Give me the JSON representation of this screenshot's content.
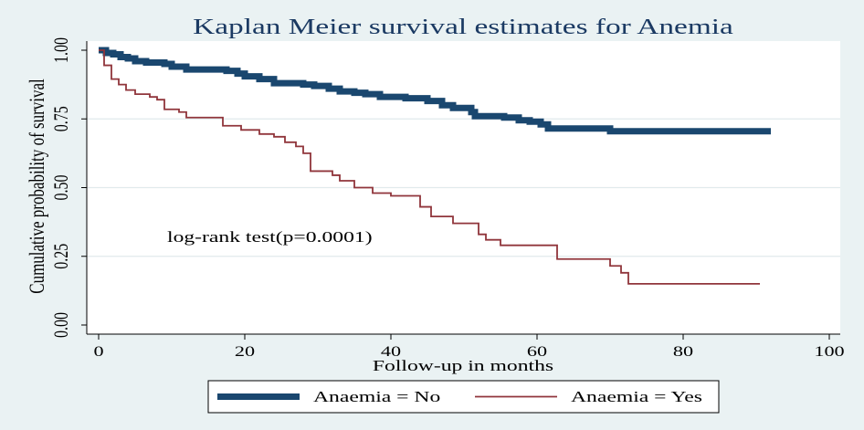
{
  "chart_data": {
    "type": "line",
    "title": "Kaplan Meier survival estimates for Anemia",
    "xlabel": "Follow-up in months",
    "ylabel": "Cumulative probability of survival",
    "xlim": [
      0,
      100
    ],
    "ylim": [
      0,
      1
    ],
    "xticks": [
      0,
      20,
      40,
      60,
      80,
      100
    ],
    "xtick_labels": [
      "0",
      "20",
      "40",
      "60",
      "80",
      "100"
    ],
    "yticks": [
      0,
      0.25,
      0.5,
      0.75,
      1
    ],
    "ytick_labels": [
      "0.00",
      "0.25",
      "0.50",
      "0.75",
      "1.00"
    ],
    "grid": true,
    "legend_position": "bottom",
    "annotations": [
      {
        "text": "log-rank test(p=0.0001)"
      }
    ],
    "series": [
      {
        "name": "Anaemia = No",
        "color": "#1a476f",
        "x": [
          0,
          1,
          2,
          3,
          4,
          5,
          6.5,
          9,
          10,
          12,
          17.5,
          19,
          20,
          22,
          24,
          28,
          29.5,
          31.5,
          33,
          35,
          36.5,
          38.5,
          42,
          45,
          47,
          48.5,
          51,
          51.5,
          55.5,
          57.5,
          59,
          60.5,
          61.5,
          70,
          92
        ],
        "y": [
          1.0,
          0.99,
          0.985,
          0.975,
          0.97,
          0.96,
          0.955,
          0.95,
          0.94,
          0.93,
          0.925,
          0.915,
          0.905,
          0.895,
          0.88,
          0.875,
          0.87,
          0.86,
          0.85,
          0.845,
          0.84,
          0.83,
          0.825,
          0.815,
          0.8,
          0.79,
          0.775,
          0.76,
          0.755,
          0.745,
          0.74,
          0.73,
          0.715,
          0.705,
          0.705
        ]
      },
      {
        "name": "Anaemia = Yes",
        "color": "#90353b",
        "x": [
          0,
          0.75,
          1.75,
          2.75,
          3.75,
          5,
          7,
          8,
          9,
          11,
          12,
          17,
          19.5,
          22,
          24,
          25.5,
          27,
          28,
          29,
          32,
          33,
          35,
          37.5,
          40,
          44,
          45.5,
          48.5,
          52,
          53,
          55,
          62.75,
          70,
          71.5,
          72.5,
          90.5
        ],
        "y": [
          1.0,
          0.945,
          0.895,
          0.875,
          0.855,
          0.84,
          0.83,
          0.82,
          0.785,
          0.775,
          0.755,
          0.725,
          0.71,
          0.695,
          0.685,
          0.665,
          0.65,
          0.625,
          0.56,
          0.545,
          0.525,
          0.5,
          0.48,
          0.47,
          0.43,
          0.395,
          0.37,
          0.33,
          0.31,
          0.29,
          0.24,
          0.215,
          0.19,
          0.15,
          0.15
        ]
      }
    ]
  },
  "colors": {
    "background": "#eaf2f3",
    "plot_region": "#ffffff",
    "title": "#1b3a63",
    "gridline": "#e1eaec",
    "axis": "#000000"
  }
}
